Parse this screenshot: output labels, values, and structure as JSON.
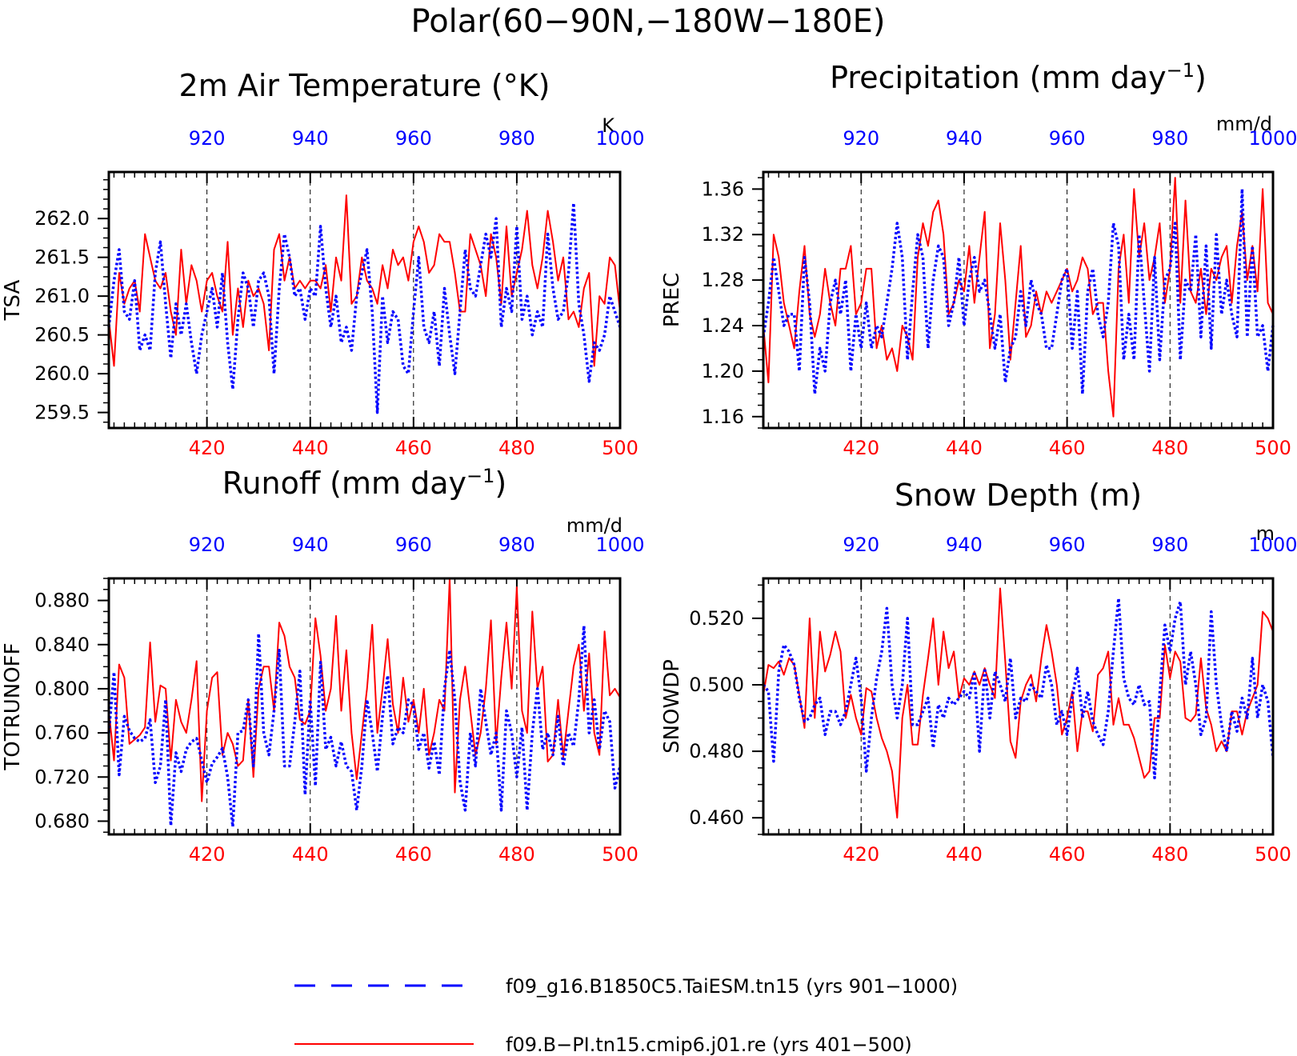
{
  "main_title": "Polar(60−90N,−180W−180E)",
  "legend": {
    "entries": [
      {
        "label": "f09_g16.B1850C5.TaiESM.tn15 (yrs 901−1000)",
        "color": "#0000ff",
        "style": "dashed"
      },
      {
        "label": "f09.B−PI.tn15.cmip6.j01.re (yrs 401−500)",
        "color": "#ff0000",
        "style": "solid"
      }
    ]
  },
  "colors": {
    "series_a": "#ff0000",
    "series_b": "#0000ff",
    "frame": "#000000"
  },
  "chart_data": [
    {
      "type": "line",
      "title": "2m Air Temperature (°K)",
      "ylabel": "TSA",
      "units": "K",
      "ylim": [
        259.3,
        262.6
      ],
      "yticks": [
        "259.5",
        "260.0",
        "260.5",
        "261.0",
        "261.5",
        "262.0"
      ],
      "xlim_bottom": [
        401,
        500
      ],
      "xlim_top": [
        901,
        1000
      ],
      "xticks_bottom": [
        "420",
        "440",
        "460",
        "480",
        "500"
      ],
      "xticks_top": [
        "920",
        "940",
        "960",
        "980",
        "1000"
      ],
      "series": [
        {
          "years": "401-500",
          "values": [
            260.7,
            260.1,
            261.3,
            260.9,
            261.1,
            261.2,
            260.8,
            261.8,
            261.5,
            261.2,
            261.1,
            261.3,
            260.8,
            260.5,
            261.6,
            260.9,
            261.4,
            261.2,
            260.8,
            261.2,
            261.3,
            261.0,
            260.8,
            261.7,
            260.5,
            261.1,
            260.6,
            261.2,
            261.0,
            261.1,
            260.9,
            260.3,
            261.6,
            261.8,
            261.2,
            261.5,
            261.1,
            261.2,
            261.1,
            261.2,
            261.2,
            261.1,
            261.4,
            260.8,
            261.5,
            261.2,
            262.3,
            260.9,
            261.0,
            261.5,
            261.2,
            261.1,
            260.9,
            261.4,
            261.1,
            261.6,
            261.4,
            261.5,
            261.2,
            261.7,
            261.9,
            261.7,
            261.3,
            261.4,
            261.8,
            261.7,
            261.7,
            261.3,
            260.8,
            260.8,
            261.8,
            261.6,
            261.4,
            261.0,
            261.8,
            261.5,
            260.9,
            261.9,
            261.0,
            261.3,
            261.6,
            262.1,
            261.4,
            261.1,
            261.5,
            262.1,
            261.7,
            261.2,
            261.5,
            260.7,
            260.8,
            260.6,
            261.1,
            261.3,
            260.1,
            261.0,
            260.9,
            261.5,
            261.4,
            260.8
          ]
        },
        {
          "years": "901-1000",
          "values": [
            260.6,
            261.2,
            261.6,
            260.8,
            260.7,
            261.2,
            260.3,
            260.5,
            260.3,
            261.3,
            261.7,
            260.9,
            260.2,
            260.9,
            260.5,
            260.9,
            260.4,
            260.0,
            260.5,
            260.8,
            261.1,
            260.6,
            261.3,
            260.4,
            259.8,
            260.7,
            261.3,
            261.1,
            260.6,
            261.2,
            261.3,
            261.0,
            260.0,
            261.1,
            261.8,
            261.5,
            261.0,
            261.1,
            260.7,
            261.1,
            261.0,
            261.9,
            261.1,
            260.6,
            261.0,
            260.4,
            260.6,
            260.3,
            261.0,
            261.3,
            261.6,
            260.8,
            259.5,
            261.0,
            260.4,
            260.8,
            260.7,
            260.1,
            260.0,
            260.8,
            261.5,
            260.6,
            260.4,
            260.8,
            260.1,
            261.1,
            260.5,
            260.0,
            260.8,
            261.6,
            261.1,
            261.0,
            261.4,
            261.8,
            261.5,
            262.0,
            260.6,
            261.1,
            260.8,
            261.9,
            260.7,
            261.0,
            260.5,
            260.8,
            260.6,
            261.8,
            261.1,
            260.7,
            260.8,
            261.3,
            262.2,
            260.9,
            260.5,
            259.9,
            260.4,
            260.3,
            260.5,
            261.0,
            260.8,
            260.6
          ]
        }
      ]
    },
    {
      "type": "line",
      "title": "Precipitation (mm day",
      "title_sup": "−1",
      "title_end": ")",
      "ylabel": "PREC",
      "units": "mm/d",
      "ylim": [
        1.15,
        1.375
      ],
      "yticks": [
        "1.16",
        "1.20",
        "1.24",
        "1.28",
        "1.32",
        "1.36"
      ],
      "xlim_bottom": [
        401,
        500
      ],
      "xlim_top": [
        901,
        1000
      ],
      "xticks_bottom": [
        "420",
        "440",
        "460",
        "480",
        "500"
      ],
      "xticks_top": [
        "920",
        "940",
        "960",
        "980",
        "1000"
      ],
      "series": [
        {
          "years": "401-500",
          "values": [
            1.24,
            1.19,
            1.32,
            1.3,
            1.26,
            1.24,
            1.22,
            1.27,
            1.31,
            1.25,
            1.23,
            1.25,
            1.29,
            1.26,
            1.24,
            1.29,
            1.29,
            1.31,
            1.25,
            1.26,
            1.29,
            1.29,
            1.22,
            1.24,
            1.21,
            1.22,
            1.2,
            1.24,
            1.23,
            1.21,
            1.3,
            1.33,
            1.31,
            1.34,
            1.35,
            1.32,
            1.25,
            1.26,
            1.28,
            1.27,
            1.31,
            1.26,
            1.3,
            1.34,
            1.22,
            1.25,
            1.33,
            1.28,
            1.21,
            1.26,
            1.31,
            1.23,
            1.24,
            1.27,
            1.25,
            1.27,
            1.26,
            1.27,
            1.28,
            1.29,
            1.27,
            1.28,
            1.3,
            1.29,
            1.25,
            1.26,
            1.26,
            1.2,
            1.16,
            1.29,
            1.32,
            1.26,
            1.36,
            1.3,
            1.33,
            1.28,
            1.3,
            1.33,
            1.26,
            1.29,
            1.37,
            1.26,
            1.35,
            1.27,
            1.26,
            1.29,
            1.25,
            1.29,
            1.28,
            1.3,
            1.31,
            1.26,
            1.31,
            1.34,
            1.28,
            1.31,
            1.27,
            1.36,
            1.26,
            1.25
          ]
        },
        {
          "years": "901-1000",
          "values": [
            1.23,
            1.26,
            1.3,
            1.27,
            1.24,
            1.25,
            1.25,
            1.2,
            1.3,
            1.26,
            1.18,
            1.22,
            1.2,
            1.26,
            1.28,
            1.25,
            1.28,
            1.2,
            1.25,
            1.22,
            1.26,
            1.22,
            1.24,
            1.23,
            1.26,
            1.29,
            1.33,
            1.3,
            1.21,
            1.27,
            1.32,
            1.3,
            1.22,
            1.28,
            1.31,
            1.3,
            1.24,
            1.26,
            1.3,
            1.24,
            1.28,
            1.3,
            1.27,
            1.28,
            1.25,
            1.22,
            1.25,
            1.19,
            1.22,
            1.23,
            1.27,
            1.24,
            1.28,
            1.26,
            1.25,
            1.22,
            1.22,
            1.25,
            1.28,
            1.29,
            1.22,
            1.27,
            1.18,
            1.27,
            1.29,
            1.25,
            1.23,
            1.26,
            1.33,
            1.31,
            1.21,
            1.25,
            1.21,
            1.32,
            1.26,
            1.2,
            1.3,
            1.21,
            1.28,
            1.29,
            1.33,
            1.21,
            1.28,
            1.27,
            1.32,
            1.23,
            1.31,
            1.22,
            1.32,
            1.25,
            1.28,
            1.25,
            1.23,
            1.36,
            1.23,
            1.31,
            1.23,
            1.24,
            1.2,
            1.24
          ]
        }
      ]
    },
    {
      "type": "line",
      "title": "Runoff (mm day",
      "title_sup": "−1",
      "title_end": ")",
      "ylabel": "TOTRUNOFF",
      "units": "mm/d",
      "ylim": [
        0.668,
        0.9
      ],
      "yticks": [
        "0.680",
        "0.720",
        "0.760",
        "0.800",
        "0.840",
        "0.880"
      ],
      "xlim_bottom": [
        401,
        500
      ],
      "xlim_top": [
        901,
        1000
      ],
      "xticks_bottom": [
        "420",
        "440",
        "460",
        "480",
        "500"
      ],
      "xticks_top": [
        "920",
        "940",
        "960",
        "980",
        "1000"
      ],
      "series": [
        {
          "years": "401-500",
          "values": [
            0.78,
            0.735,
            0.822,
            0.81,
            0.75,
            0.754,
            0.758,
            0.765,
            0.842,
            0.77,
            0.803,
            0.8,
            0.735,
            0.79,
            0.77,
            0.76,
            0.79,
            0.825,
            0.698,
            0.78,
            0.81,
            0.815,
            0.74,
            0.76,
            0.75,
            0.73,
            0.735,
            0.79,
            0.72,
            0.8,
            0.82,
            0.82,
            0.78,
            0.86,
            0.848,
            0.82,
            0.81,
            0.772,
            0.768,
            0.78,
            0.864,
            0.83,
            0.78,
            0.8,
            0.866,
            0.78,
            0.835,
            0.76,
            0.718,
            0.76,
            0.8,
            0.858,
            0.76,
            0.8,
            0.845,
            0.786,
            0.76,
            0.81,
            0.77,
            0.79,
            0.76,
            0.8,
            0.74,
            0.76,
            0.79,
            0.78,
            0.9,
            0.706,
            0.79,
            0.82,
            0.78,
            0.74,
            0.76,
            0.8,
            0.862,
            0.75,
            0.81,
            0.86,
            0.8,
            0.892,
            0.78,
            0.76,
            0.87,
            0.8,
            0.82,
            0.734,
            0.74,
            0.79,
            0.738,
            0.78,
            0.82,
            0.84,
            0.78,
            0.832,
            0.76,
            0.74,
            0.852,
            0.794,
            0.8,
            0.792
          ]
        },
        {
          "years": "901-1000",
          "values": [
            0.76,
            0.815,
            0.722,
            0.775,
            0.762,
            0.755,
            0.752,
            0.755,
            0.772,
            0.715,
            0.73,
            0.79,
            0.676,
            0.742,
            0.725,
            0.745,
            0.752,
            0.755,
            0.735,
            0.715,
            0.732,
            0.738,
            0.746,
            0.72,
            0.675,
            0.76,
            0.762,
            0.79,
            0.73,
            0.85,
            0.76,
            0.74,
            0.78,
            0.835,
            0.73,
            0.73,
            0.77,
            0.816,
            0.704,
            0.79,
            0.712,
            0.824,
            0.745,
            0.756,
            0.73,
            0.752,
            0.73,
            0.725,
            0.69,
            0.73,
            0.79,
            0.76,
            0.725,
            0.775,
            0.812,
            0.75,
            0.765,
            0.76,
            0.79,
            0.785,
            0.745,
            0.76,
            0.728,
            0.752,
            0.722,
            0.8,
            0.835,
            0.79,
            0.716,
            0.69,
            0.76,
            0.73,
            0.8,
            0.77,
            0.74,
            0.76,
            0.69,
            0.78,
            0.76,
            0.72,
            0.765,
            0.69,
            0.76,
            0.8,
            0.745,
            0.76,
            0.74,
            0.775,
            0.73,
            0.76,
            0.748,
            0.79,
            0.857,
            0.76,
            0.79,
            0.745,
            0.78,
            0.77,
            0.71,
            0.73
          ]
        }
      ]
    },
    {
      "type": "line",
      "title": "Snow Depth (m)",
      "ylabel": "SNOWDP",
      "units": "m",
      "ylim": [
        0.455,
        0.532
      ],
      "yticks": [
        "0.460",
        "0.480",
        "0.500",
        "0.520"
      ],
      "xlim_bottom": [
        401,
        500
      ],
      "xlim_top": [
        901,
        1000
      ],
      "xticks_bottom": [
        "420",
        "440",
        "460",
        "480",
        "500"
      ],
      "xticks_top": [
        "920",
        "940",
        "960",
        "980",
        "1000"
      ],
      "series": [
        {
          "years": "401-500",
          "values": [
            0.497,
            0.506,
            0.505,
            0.507,
            0.503,
            0.508,
            0.506,
            0.497,
            0.487,
            0.52,
            0.49,
            0.516,
            0.504,
            0.509,
            0.516,
            0.51,
            0.49,
            0.497,
            0.49,
            0.485,
            0.499,
            0.498,
            0.49,
            0.484,
            0.48,
            0.474,
            0.46,
            0.49,
            0.5,
            0.482,
            0.482,
            0.497,
            0.508,
            0.52,
            0.5,
            0.516,
            0.505,
            0.51,
            0.496,
            0.502,
            0.5,
            0.504,
            0.5,
            0.505,
            0.5,
            0.496,
            0.529,
            0.507,
            0.483,
            0.478,
            0.495,
            0.5,
            0.503,
            0.495,
            0.508,
            0.518,
            0.51,
            0.5,
            0.485,
            0.49,
            0.498,
            0.48,
            0.492,
            0.492,
            0.486,
            0.503,
            0.505,
            0.51,
            0.488,
            0.496,
            0.488,
            0.488,
            0.484,
            0.478,
            0.472,
            0.474,
            0.49,
            0.49,
            0.512,
            0.502,
            0.51,
            0.507,
            0.49,
            0.489,
            0.491,
            0.508,
            0.493,
            0.488,
            0.48,
            0.483,
            0.48,
            0.492,
            0.492,
            0.485,
            0.492,
            0.496,
            0.5,
            0.522,
            0.52,
            0.516
          ]
        },
        {
          "years": "901-1000",
          "values": [
            0.5,
            0.498,
            0.477,
            0.504,
            0.512,
            0.51,
            0.506,
            0.496,
            0.489,
            0.49,
            0.494,
            0.496,
            0.485,
            0.492,
            0.492,
            0.488,
            0.492,
            0.5,
            0.508,
            0.496,
            0.474,
            0.49,
            0.502,
            0.51,
            0.523,
            0.5,
            0.49,
            0.5,
            0.52,
            0.488,
            0.488,
            0.492,
            0.496,
            0.481,
            0.494,
            0.49,
            0.496,
            0.494,
            0.496,
            0.498,
            0.496,
            0.504,
            0.48,
            0.505,
            0.49,
            0.504,
            0.5,
            0.495,
            0.508,
            0.49,
            0.496,
            0.495,
            0.5,
            0.498,
            0.496,
            0.506,
            0.5,
            0.488,
            0.492,
            0.485,
            0.496,
            0.505,
            0.49,
            0.498,
            0.489,
            0.485,
            0.482,
            0.492,
            0.51,
            0.526,
            0.502,
            0.496,
            0.494,
            0.5,
            0.494,
            0.495,
            0.472,
            0.497,
            0.518,
            0.51,
            0.52,
            0.525,
            0.5,
            0.51,
            0.5,
            0.485,
            0.49,
            0.522,
            0.5,
            0.488,
            0.48,
            0.492,
            0.486,
            0.496,
            0.49,
            0.508,
            0.49,
            0.5,
            0.495,
            0.478
          ]
        }
      ]
    }
  ]
}
